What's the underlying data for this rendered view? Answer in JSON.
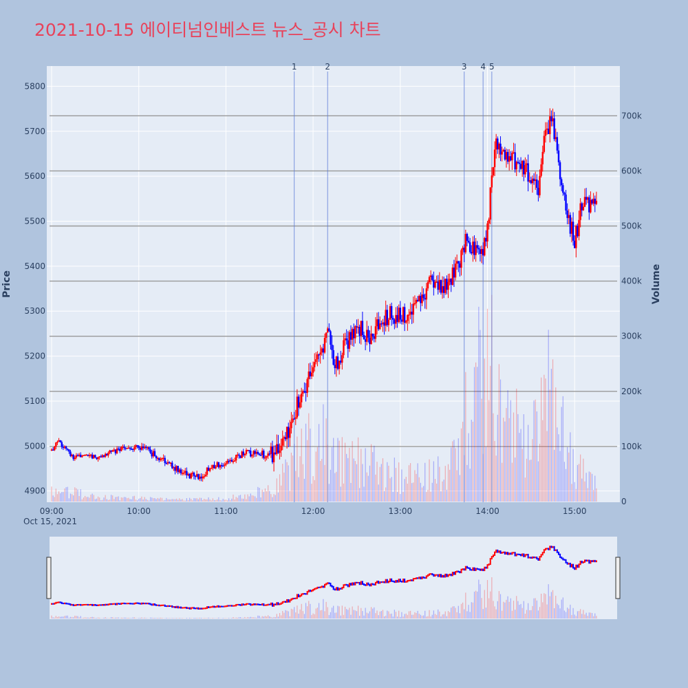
{
  "title": "2021-10-15 에이티넘인베스트 뉴스_공시 차트",
  "chart_data": {
    "type": "candlestick",
    "title": "2021-10-15 에이티넘인베스트 뉴스_공시 차트",
    "xlabel": "",
    "ylabel": "Price",
    "y2label": "Volume",
    "date_label": "Oct 15, 2021",
    "x_ticks": [
      "09:00",
      "10:00",
      "11:00",
      "12:00",
      "13:00",
      "14:00",
      "15:00"
    ],
    "y_ticks": [
      4900,
      5000,
      5100,
      5200,
      5300,
      5400,
      5500,
      5600,
      5700,
      5800
    ],
    "y2_ticks": [
      "0",
      "100k",
      "200k",
      "300k",
      "400k",
      "500k",
      "600k",
      "700k"
    ],
    "ylim": [
      4875,
      5845
    ],
    "y2lim": [
      0,
      790000
    ],
    "news_markers": [
      {
        "label": "1",
        "time": "11:47"
      },
      {
        "label": "2",
        "time": "12:10"
      },
      {
        "label": "3",
        "time": "13:44"
      },
      {
        "label": "4",
        "time": "13:57"
      },
      {
        "label": "5",
        "time": "14:03"
      }
    ],
    "price_anchors": [
      [
        "09:00",
        4990
      ],
      [
        "09:05",
        5010
      ],
      [
        "09:15",
        4975
      ],
      [
        "09:30",
        4975
      ],
      [
        "09:45",
        4990
      ],
      [
        "10:00",
        5000
      ],
      [
        "10:15",
        4975
      ],
      [
        "10:30",
        4940
      ],
      [
        "10:40",
        4930
      ],
      [
        "10:55",
        4960
      ],
      [
        "11:15",
        4985
      ],
      [
        "11:30",
        4980
      ],
      [
        "11:40",
        5010
      ],
      [
        "11:45",
        5060
      ],
      [
        "11:55",
        5130
      ],
      [
        "12:05",
        5200
      ],
      [
        "12:10",
        5270
      ],
      [
        "12:15",
        5180
      ],
      [
        "12:30",
        5270
      ],
      [
        "12:40",
        5240
      ],
      [
        "12:50",
        5290
      ],
      [
        "13:05",
        5290
      ],
      [
        "13:15",
        5330
      ],
      [
        "13:20",
        5370
      ],
      [
        "13:30",
        5360
      ],
      [
        "13:40",
        5400
      ],
      [
        "13:45",
        5460
      ],
      [
        "13:55",
        5420
      ],
      [
        "14:00",
        5480
      ],
      [
        "14:05",
        5680
      ],
      [
        "14:15",
        5640
      ],
      [
        "14:25",
        5620
      ],
      [
        "14:35",
        5560
      ],
      [
        "14:40",
        5700
      ],
      [
        "14:45",
        5720
      ],
      [
        "14:50",
        5600
      ],
      [
        "14:55",
        5520
      ],
      [
        "15:00",
        5450
      ],
      [
        "15:05",
        5540
      ],
      [
        "15:15",
        5530
      ]
    ],
    "volume_profile": [
      [
        "09:00",
        25000
      ],
      [
        "09:30",
        8000
      ],
      [
        "10:00",
        6000
      ],
      [
        "10:30",
        4000
      ],
      [
        "11:00",
        5000
      ],
      [
        "11:30",
        20000
      ],
      [
        "11:45",
        60000
      ],
      [
        "12:05",
        120000
      ],
      [
        "12:15",
        80000
      ],
      [
        "12:30",
        70000
      ],
      [
        "13:00",
        45000
      ],
      [
        "13:20",
        50000
      ],
      [
        "13:35",
        60000
      ],
      [
        "13:45",
        150000
      ],
      [
        "14:00",
        260000
      ],
      [
        "14:10",
        180000
      ],
      [
        "14:30",
        80000
      ],
      [
        "14:40",
        220000
      ],
      [
        "14:50",
        140000
      ],
      [
        "15:00",
        60000
      ],
      [
        "15:15",
        40000
      ]
    ],
    "colors": {
      "up": "#ff0000",
      "down": "#0000ff",
      "bg": "#e5ecf6",
      "paper": "#b0c4de",
      "title": "#e8425a"
    },
    "grid": true
  }
}
